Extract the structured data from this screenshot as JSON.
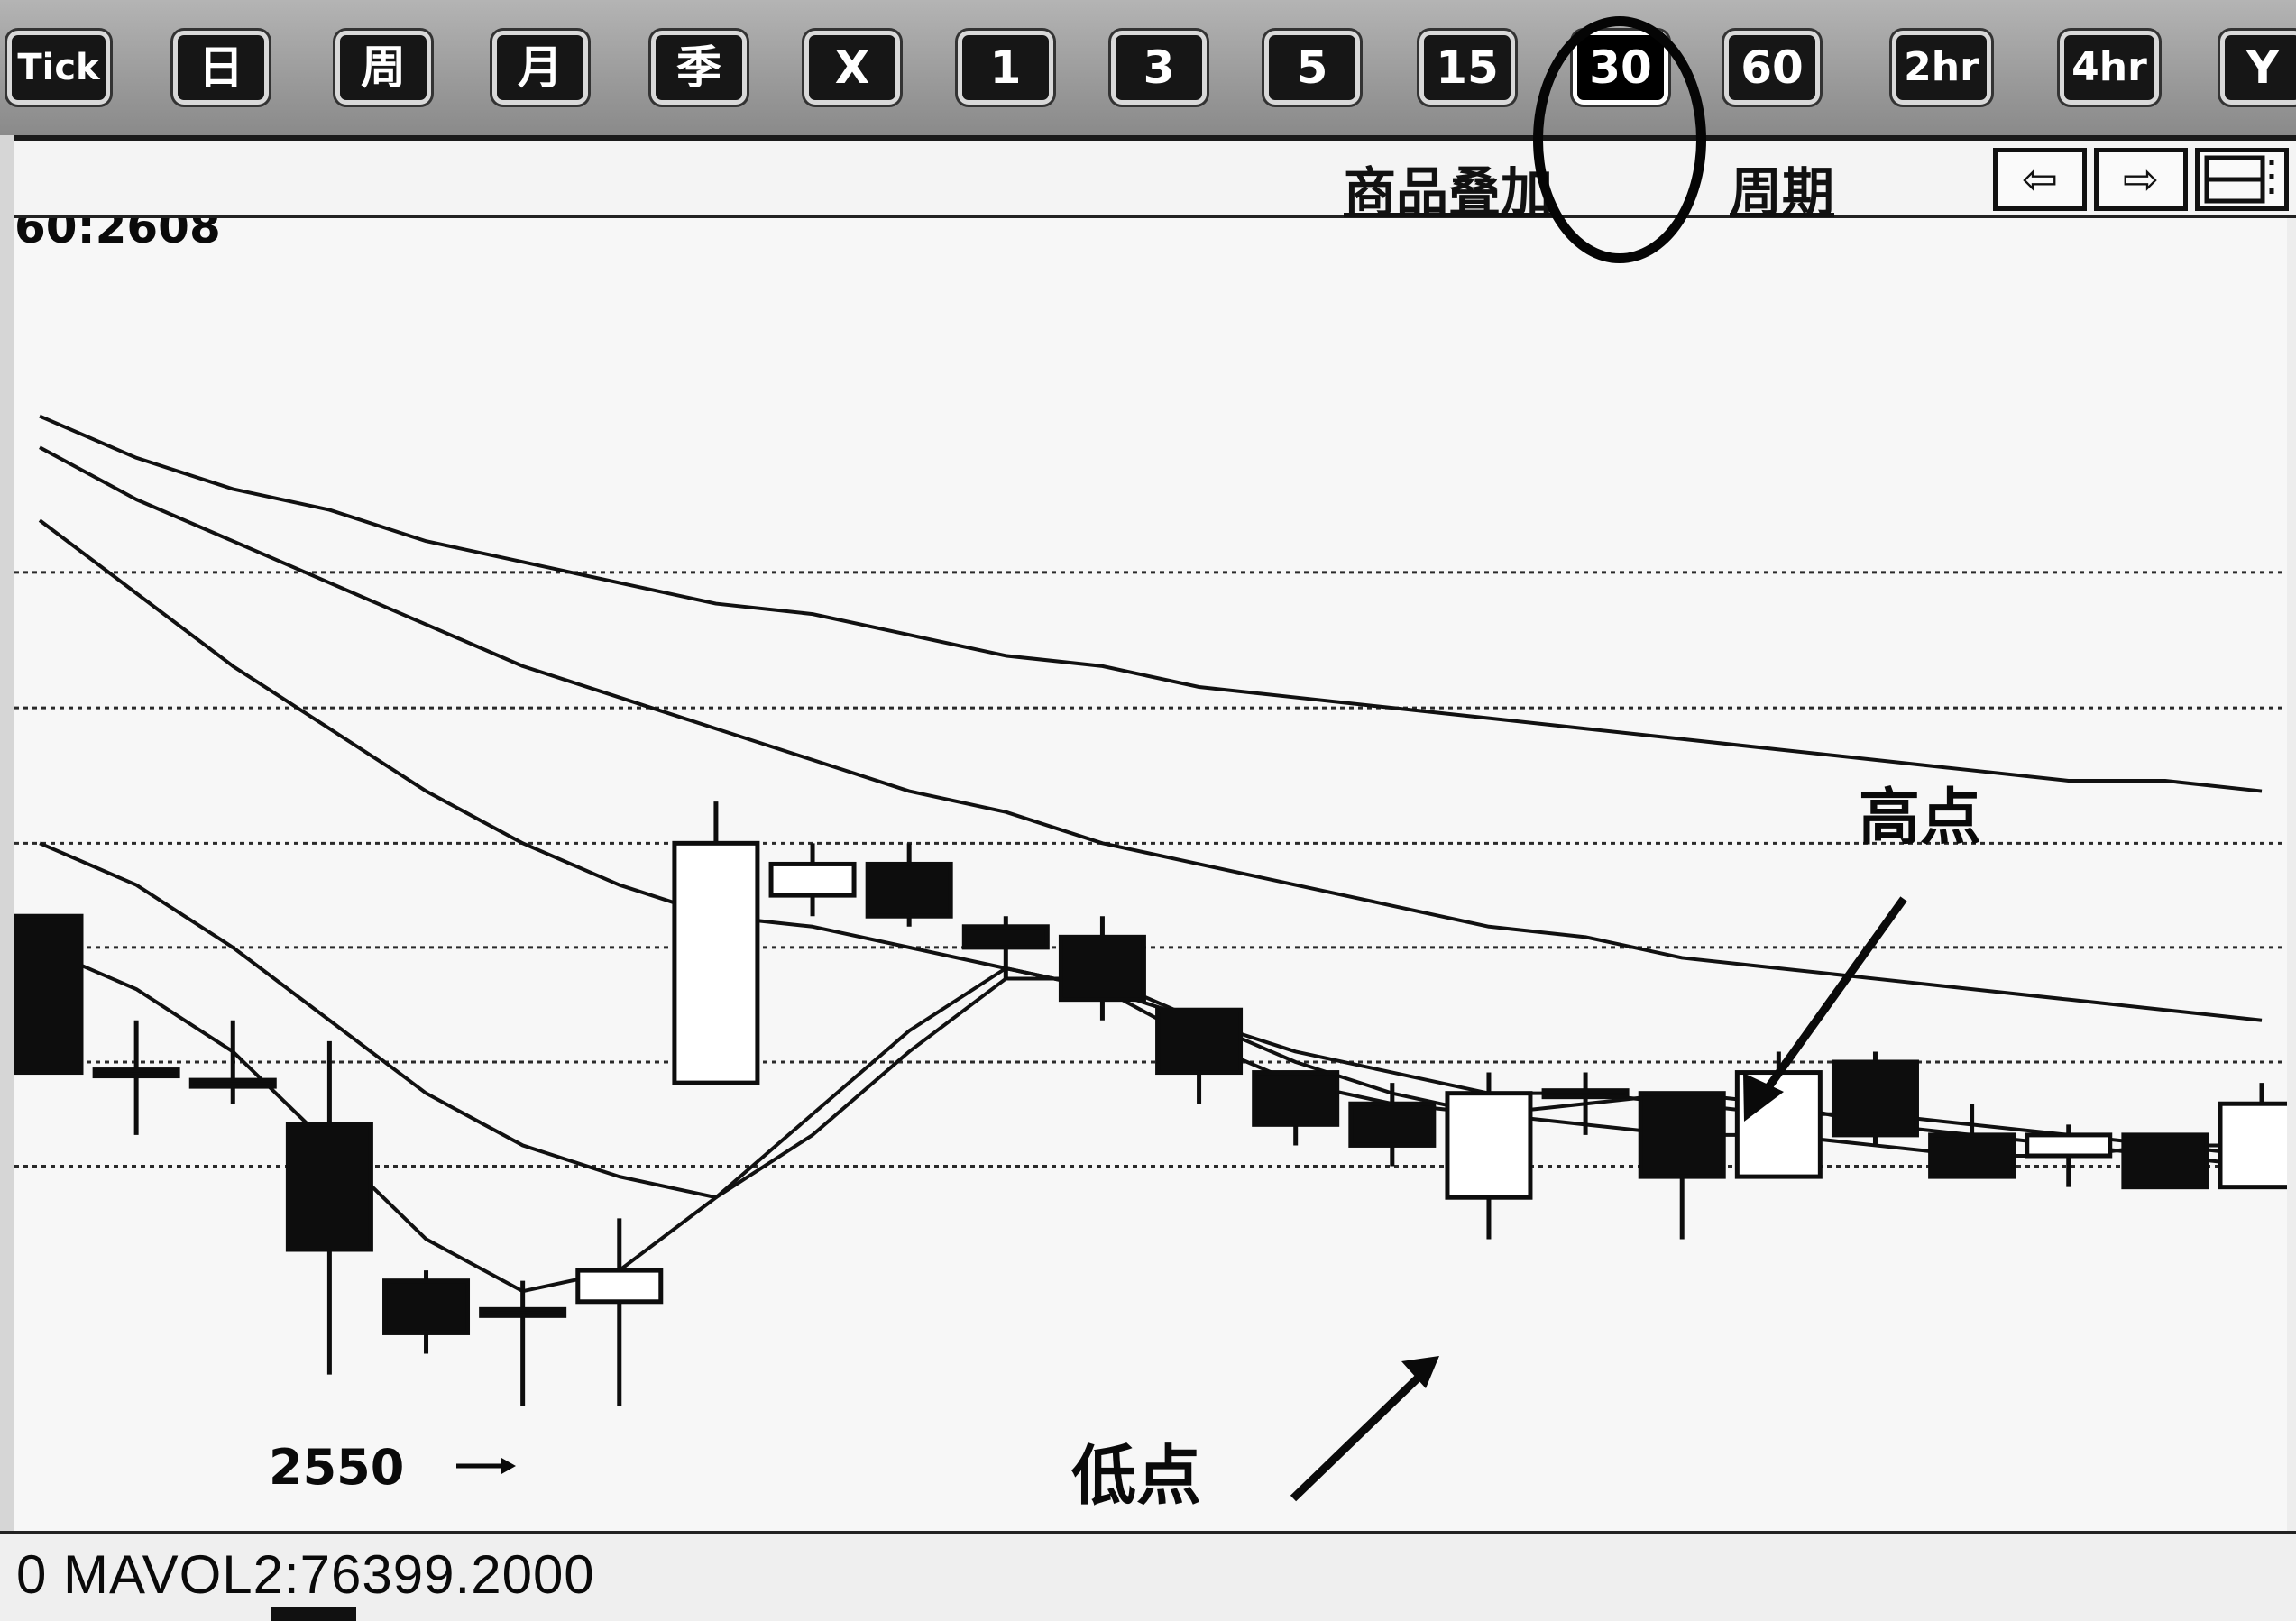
{
  "toolbar": {
    "buttons": [
      {
        "label": "Tick"
      },
      {
        "label": "日"
      },
      {
        "label": "周"
      },
      {
        "label": "月"
      },
      {
        "label": "季"
      },
      {
        "label": "X"
      },
      {
        "label": "1"
      },
      {
        "label": "3"
      },
      {
        "label": "5"
      },
      {
        "label": "15"
      },
      {
        "label": "30"
      },
      {
        "label": "60"
      },
      {
        "label": "2hr"
      },
      {
        "label": "4hr"
      },
      {
        "label": "Y"
      }
    ],
    "active": "30"
  },
  "subbar": {
    "overlay_link": "商品叠加",
    "period_link": "周期",
    "nav": {
      "prev": "⇦",
      "next": "⇨",
      "layout": "▭"
    }
  },
  "chart": {
    "top_label": "60:2608",
    "annotations": {
      "high": "高点",
      "low": "低点",
      "price": "2550"
    }
  },
  "footer": {
    "mavol": "0 MAVOL2:76399.2000"
  },
  "chart_data": {
    "type": "candlestick",
    "annotations": [
      "高点",
      "低点",
      "2550"
    ],
    "candles": [
      {
        "open": 2597,
        "close": 2582,
        "high": 2597,
        "low": 2582
      },
      {
        "open": 2582,
        "close": 2582,
        "high": 2587,
        "low": 2576
      },
      {
        "open": 2581,
        "close": 2581,
        "high": 2587,
        "low": 2579
      },
      {
        "open": 2577,
        "close": 2565,
        "high": 2585,
        "low": 2553
      },
      {
        "open": 2562,
        "close": 2557,
        "high": 2563,
        "low": 2555
      },
      {
        "open": 2559,
        "close": 2559,
        "high": 2562,
        "low": 2550
      },
      {
        "open": 2560,
        "close": 2563,
        "high": 2568,
        "low": 2550
      },
      {
        "open": 2581,
        "close": 2604,
        "high": 2608,
        "low": 2581
      },
      {
        "open": 2599,
        "close": 2602,
        "high": 2604,
        "low": 2597
      },
      {
        "open": 2602,
        "close": 2597,
        "high": 2604,
        "low": 2596
      },
      {
        "open": 2596,
        "close": 2594,
        "high": 2597,
        "low": 2591
      },
      {
        "open": 2595,
        "close": 2589,
        "high": 2597,
        "low": 2587
      },
      {
        "open": 2588,
        "close": 2582,
        "high": 2588,
        "low": 2579
      },
      {
        "open": 2582,
        "close": 2577,
        "high": 2582,
        "low": 2575
      },
      {
        "open": 2579,
        "close": 2575,
        "high": 2581,
        "low": 2573
      },
      {
        "open": 2570,
        "close": 2580,
        "high": 2582,
        "low": 2566
      },
      {
        "open": 2580,
        "close": 2580,
        "high": 2582,
        "low": 2576
      },
      {
        "open": 2580,
        "close": 2572,
        "high": 2580,
        "low": 2566
      },
      {
        "open": 2572,
        "close": 2582,
        "high": 2584,
        "low": 2572
      },
      {
        "open": 2583,
        "close": 2576,
        "high": 2584,
        "low": 2575
      },
      {
        "open": 2576,
        "close": 2572,
        "high": 2579,
        "low": 2572
      },
      {
        "open": 2574,
        "close": 2576,
        "high": 2577,
        "low": 2571
      },
      {
        "open": 2576,
        "close": 2571,
        "high": 2576,
        "low": 2571
      },
      {
        "open": 2571,
        "close": 2579,
        "high": 2581,
        "low": 2571
      }
    ],
    "moving_averages": [
      {
        "values": [
          2594,
          2590,
          2584,
          2575,
          2566,
          2561,
          2563,
          2570,
          2578,
          2586,
          2592,
          2590,
          2585,
          2581,
          2579,
          2578,
          2577,
          2576,
          2576,
          2575,
          2574,
          2574,
          2575,
          2575
        ]
      },
      {
        "values": [
          2604,
          2600,
          2594,
          2587,
          2580,
          2575,
          2572,
          2570,
          2576,
          2584,
          2591,
          2591,
          2587,
          2583,
          2580,
          2578,
          2579,
          2580,
          2579,
          2577,
          2576,
          2575,
          2574,
          2573
        ]
      },
      {
        "values": [
          2635,
          2628,
          2621,
          2615,
          2609,
          2604,
          2600,
          2597,
          2596,
          2594,
          2592,
          2590,
          2587,
          2584,
          2582,
          2580,
          2580,
          2579,
          2578,
          2578,
          2577,
          2576,
          2575,
          2574
        ]
      },
      {
        "values": [
          2642,
          2637,
          2633,
          2629,
          2625,
          2621,
          2618,
          2615,
          2612,
          2609,
          2607,
          2604,
          2602,
          2600,
          2598,
          2596,
          2595,
          2593,
          2592,
          2591,
          2590,
          2589,
          2588,
          2587
        ]
      },
      {
        "values": [
          2645,
          2641,
          2638,
          2636,
          2633,
          2631,
          2629,
          2627,
          2626,
          2624,
          2622,
          2621,
          2619,
          2618,
          2617,
          2616,
          2615,
          2614,
          2613,
          2612,
          2611,
          2610,
          2610,
          2609
        ]
      }
    ],
    "ylim": [
      2538,
      2664
    ],
    "gridlines": [
      2573,
      2583,
      2594,
      2604,
      2617,
      2630
    ],
    "grid": true
  }
}
